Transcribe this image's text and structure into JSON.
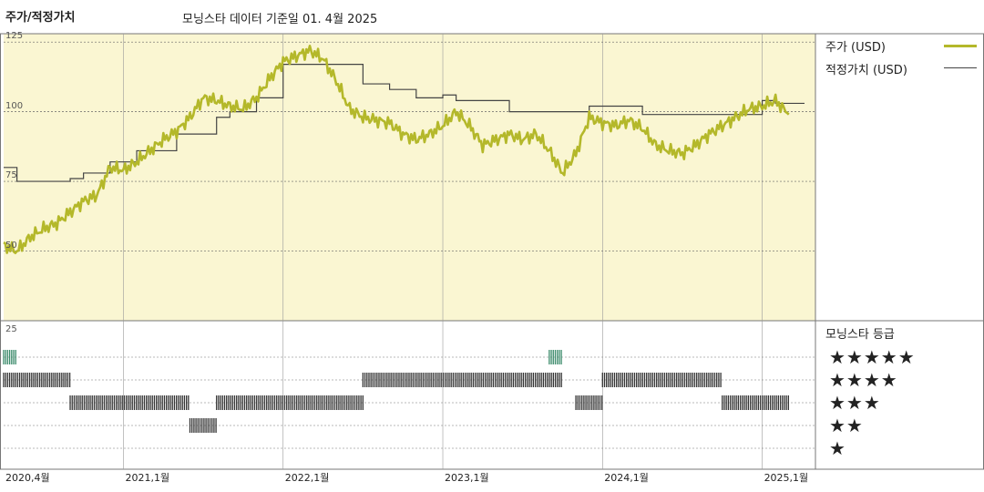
{
  "header": {
    "left_title": "주가/적정가치",
    "subtitle": "모닝스타 데이터 기준일 01. 4월 2025"
  },
  "legend": {
    "price_label": "주가 (USD)",
    "fair_value_label": "적정가치 (USD)",
    "price_color": "#b4b82a",
    "fair_value_color": "#444444"
  },
  "rating": {
    "title": "모닝스타 등급",
    "levels": [
      "★★★★★",
      "★★★★",
      "★★★",
      "★★",
      "★"
    ],
    "five_star_color": "#3a8a6a",
    "bar_color": "#333333"
  },
  "chart_data": {
    "type": "line",
    "x_unit": "date",
    "x_ticks": [
      "2020,4월",
      "2021,1월",
      "2022,1월",
      "2023,1월",
      "2024,1월",
      "2025,1월"
    ],
    "y_ticks": [
      "125",
      "100",
      "75",
      "50"
    ],
    "ylim": [
      25,
      128
    ],
    "background_color": "#faf6d2",
    "series": [
      {
        "name": "주가 (USD)",
        "points": [
          [
            "2020-04",
            52
          ],
          [
            "2020-05",
            50
          ],
          [
            "2020-06",
            55
          ],
          [
            "2020-07",
            58
          ],
          [
            "2020-08",
            60
          ],
          [
            "2020-09",
            64
          ],
          [
            "2020-10",
            68
          ],
          [
            "2020-11",
            70
          ],
          [
            "2020-12",
            80
          ],
          [
            "2021-01",
            79
          ],
          [
            "2021-02",
            82
          ],
          [
            "2021-03",
            86
          ],
          [
            "2021-04",
            90
          ],
          [
            "2021-05",
            93
          ],
          [
            "2021-06",
            98
          ],
          [
            "2021-07",
            105
          ],
          [
            "2021-08",
            104
          ],
          [
            "2021-09",
            102
          ],
          [
            "2021-10",
            101
          ],
          [
            "2021-11",
            105
          ],
          [
            "2021-12",
            112
          ],
          [
            "2022-01",
            118
          ],
          [
            "2022-02",
            120
          ],
          [
            "2022-03",
            122
          ],
          [
            "2022-04",
            119
          ],
          [
            "2022-05",
            111
          ],
          [
            "2022-06",
            101
          ],
          [
            "2022-07",
            98
          ],
          [
            "2022-08",
            97
          ],
          [
            "2022-09",
            96
          ],
          [
            "2022-10",
            92
          ],
          [
            "2022-11",
            90
          ],
          [
            "2022-12",
            92
          ],
          [
            "2023-01",
            95
          ],
          [
            "2023-02",
            100
          ],
          [
            "2023-03",
            95
          ],
          [
            "2023-04",
            88
          ],
          [
            "2023-05",
            90
          ],
          [
            "2023-06",
            92
          ],
          [
            "2023-07",
            90
          ],
          [
            "2023-08",
            92
          ],
          [
            "2023-09",
            86
          ],
          [
            "2023-10",
            78
          ],
          [
            "2023-11",
            85
          ],
          [
            "2023-12",
            98
          ],
          [
            "2024-01",
            96
          ],
          [
            "2024-02",
            95
          ],
          [
            "2024-03",
            97
          ],
          [
            "2024-04",
            94
          ],
          [
            "2024-05",
            88
          ],
          [
            "2024-06",
            86
          ],
          [
            "2024-07",
            85
          ],
          [
            "2024-08",
            88
          ],
          [
            "2024-09",
            92
          ],
          [
            "2024-10",
            95
          ],
          [
            "2024-11",
            98
          ],
          [
            "2024-12",
            101
          ],
          [
            "2025-01",
            102
          ],
          [
            "2025-02",
            104
          ],
          [
            "2025-03",
            99
          ]
        ]
      },
      {
        "name": "적정가치 (USD)",
        "points": [
          [
            "2020-04",
            80
          ],
          [
            "2020-05",
            75
          ],
          [
            "2020-09",
            76
          ],
          [
            "2020-10",
            78
          ],
          [
            "2020-12",
            82
          ],
          [
            "2021-02",
            86
          ],
          [
            "2021-05",
            92
          ],
          [
            "2021-08",
            98
          ],
          [
            "2021-09",
            100
          ],
          [
            "2021-11",
            105
          ],
          [
            "2022-01",
            117
          ],
          [
            "2022-07",
            110
          ],
          [
            "2022-09",
            108
          ],
          [
            "2022-11",
            105
          ],
          [
            "2023-01",
            106
          ],
          [
            "2023-02",
            104
          ],
          [
            "2023-06",
            100
          ],
          [
            "2023-12",
            102
          ],
          [
            "2024-04",
            99
          ],
          [
            "2025-01",
            104
          ],
          [
            "2025-02",
            103
          ],
          [
            "2025-03",
            103
          ]
        ]
      }
    ],
    "rating_history": [
      {
        "stars": 5,
        "from": "2020-04",
        "to": "2020-05"
      },
      {
        "stars": 4,
        "from": "2020-04",
        "to": "2020-09"
      },
      {
        "stars": 3,
        "from": "2020-09",
        "to": "2021-06"
      },
      {
        "stars": 2,
        "from": "2021-06",
        "to": "2021-08"
      },
      {
        "stars": 3,
        "from": "2021-08",
        "to": "2022-07"
      },
      {
        "stars": 4,
        "from": "2022-07",
        "to": "2023-10"
      },
      {
        "stars": 5,
        "from": "2023-09",
        "to": "2023-10"
      },
      {
        "stars": 3,
        "from": "2023-11",
        "to": "2024-01"
      },
      {
        "stars": 4,
        "from": "2024-01",
        "to": "2024-10"
      },
      {
        "stars": 3,
        "from": "2024-10",
        "to": "2025-03"
      }
    ]
  }
}
